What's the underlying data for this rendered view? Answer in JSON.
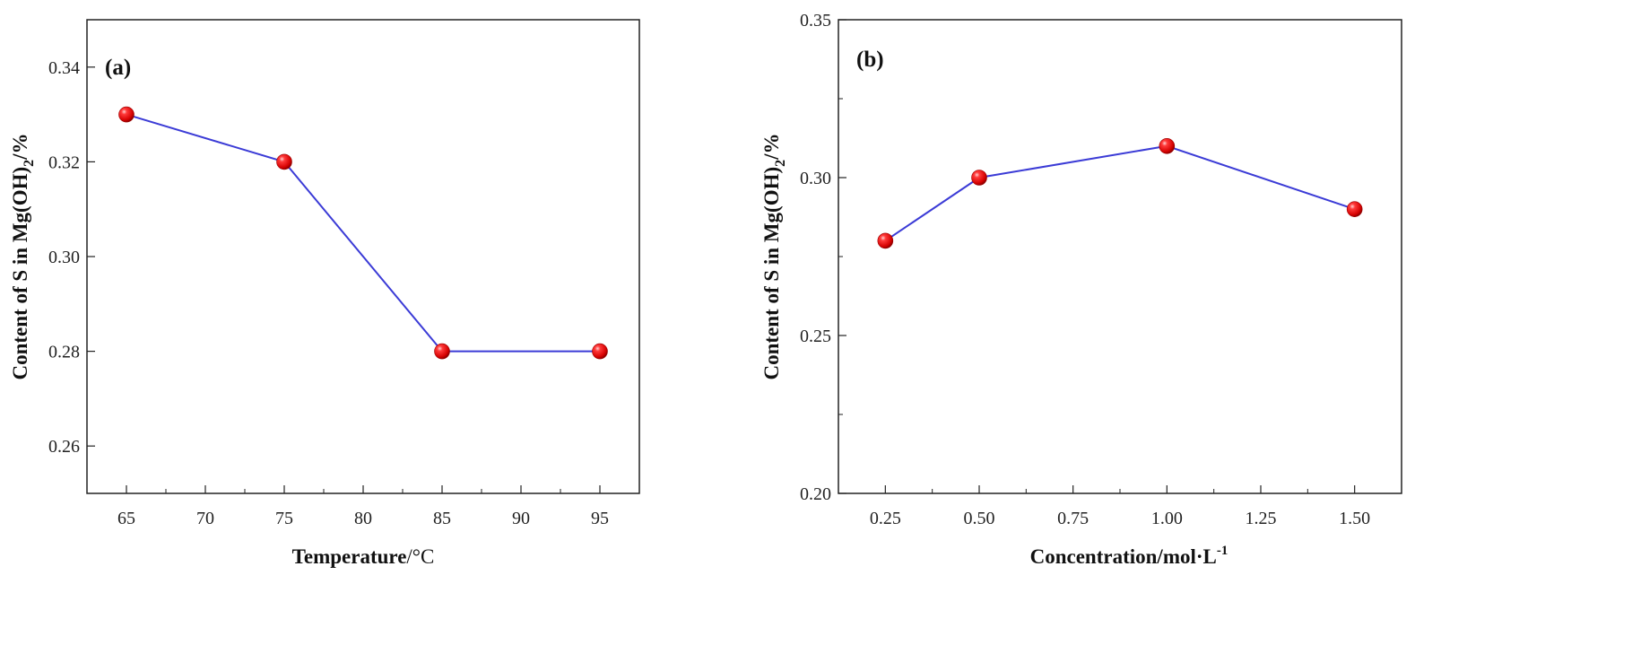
{
  "colors": {
    "line": "#3b3bd6",
    "marker": "#e01818",
    "axis": "#222222",
    "background": "#ffffff"
  },
  "chart_data": [
    {
      "type": "line",
      "panel_label": "(a)",
      "xlabel": {
        "main": "Temperature",
        "unit": "/°C"
      },
      "ylabel": {
        "pre": "Content of S in Mg(OH)",
        "sub": "2",
        "post": "/%"
      },
      "x": [
        65,
        75,
        85,
        95
      ],
      "y": [
        0.33,
        0.32,
        0.28,
        0.28
      ],
      "xlim": [
        62.5,
        97.5
      ],
      "ylim": [
        0.25,
        0.35
      ],
      "xticks": [
        65,
        70,
        75,
        80,
        85,
        90,
        95
      ],
      "xtick_labels": [
        "65",
        "70",
        "75",
        "80",
        "85",
        "90",
        "95"
      ],
      "yticks": [
        0.26,
        0.28,
        0.3,
        0.32,
        0.34
      ],
      "ytick_labels": [
        "0.26",
        "0.28",
        "0.30",
        "0.32",
        "0.34"
      ],
      "grid": false
    },
    {
      "type": "line",
      "panel_label": "(b)",
      "xlabel": {
        "main": "Concentration/mol·L",
        "sup": "-1"
      },
      "ylabel": {
        "pre": "Content of S in Mg(OH)",
        "sub": "2",
        "post": "/%"
      },
      "x": [
        0.25,
        0.5,
        1.0,
        1.5
      ],
      "y": [
        0.28,
        0.3,
        0.31,
        0.29
      ],
      "xlim": [
        0.125,
        1.625
      ],
      "ylim": [
        0.2,
        0.35
      ],
      "xticks": [
        0.25,
        0.5,
        0.75,
        1.0,
        1.25,
        1.5
      ],
      "xtick_labels": [
        "0.25",
        "0.50",
        "0.75",
        "1.00",
        "1.25",
        "1.50"
      ],
      "yticks": [
        0.2,
        0.25,
        0.3,
        0.35
      ],
      "ytick_labels": [
        "0.20",
        "0.25",
        "0.30",
        "0.35"
      ],
      "grid": false
    }
  ]
}
